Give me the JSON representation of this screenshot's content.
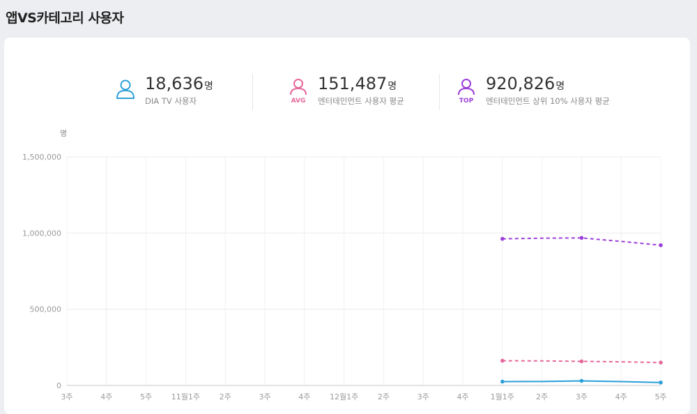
{
  "page": {
    "title": "앱VS카테고리 사용자"
  },
  "stats": [
    {
      "icon": "user-icon",
      "badge": "",
      "value": "18,636",
      "unit": "명",
      "label": "DIA TV 사용자",
      "color": "#2a9fd8"
    },
    {
      "icon": "user-avg-icon",
      "badge": "AVG",
      "value": "151,487",
      "unit": "명",
      "label": "엔터테인먼트 사용자 평균",
      "color": "#e6679a"
    },
    {
      "icon": "user-top-icon",
      "badge": "TOP",
      "value": "920,826",
      "unit": "명",
      "label": "엔터테인먼트 상위 10% 사용자 평균",
      "color": "#9b3fd8"
    }
  ],
  "chart_data": {
    "type": "line",
    "ylabel": "명",
    "ylim": [
      0,
      1500000
    ],
    "yticks": [
      "0",
      "500,000",
      "1,000,000",
      "1,500,000"
    ],
    "categories": [
      "3주",
      "4주",
      "5주",
      "11월1주",
      "2주",
      "3주",
      "4주",
      "12월1주",
      "2주",
      "3주",
      "4주",
      "1월1주",
      "2주",
      "3주",
      "4주",
      "5주"
    ],
    "series": [
      {
        "name": "DIA TV 사용자",
        "color": "#2a9fd8",
        "dashed": false,
        "marker_every": 2,
        "values": [
          null,
          null,
          null,
          null,
          null,
          null,
          null,
          null,
          null,
          null,
          null,
          25000,
          26000,
          30000,
          25000,
          19000
        ]
      },
      {
        "name": "엔터테인먼트 사용자 평균",
        "color": "#e6679a",
        "dashed": true,
        "marker_every": 2,
        "values": [
          null,
          null,
          null,
          null,
          null,
          null,
          null,
          null,
          null,
          null,
          null,
          162000,
          161000,
          158000,
          155000,
          150000
        ]
      },
      {
        "name": "엔터테인먼트 상위 10% 사용자 평균",
        "color": "#9b3fd8",
        "dashed": true,
        "marker_every": 2,
        "values": [
          null,
          null,
          null,
          null,
          null,
          null,
          null,
          null,
          null,
          null,
          null,
          962000,
          966000,
          968000,
          945000,
          920000
        ]
      }
    ]
  }
}
